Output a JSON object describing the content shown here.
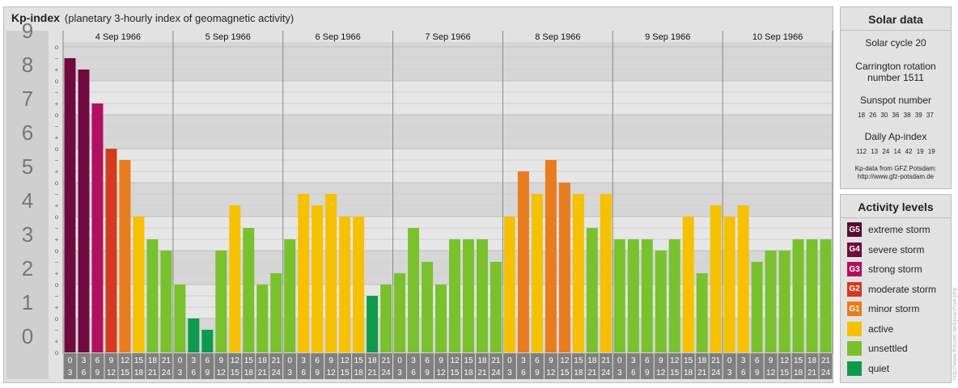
{
  "header": {
    "title": "Kp-index",
    "subtitle": "(planetary 3-hourly index of geomagnetic activity)"
  },
  "solar": {
    "heading": "Solar data",
    "cycle": "Solar cycle 20",
    "carrington_line1": "Carrington rotation",
    "carrington_line2": "number 1511",
    "sunspot_label": "Sunspot number",
    "sunspot_values": "18 26 30 36 38 39 37",
    "ap_label": "Daily Ap-index",
    "ap_values": "112 13 24 14 42 19 19",
    "source_line1": "Kp-data from GFZ Potsdam:",
    "source_line2": "http://www.gfz-potsdam.de"
  },
  "activity": {
    "heading": "Activity levels",
    "levels": [
      {
        "badge": "G5",
        "label": "extreme storm",
        "color": "#5a0a32"
      },
      {
        "badge": "G4",
        "label": "severe storm",
        "color": "#6e0a3e"
      },
      {
        "badge": "G3",
        "label": "strong storm",
        "color": "#b0105e"
      },
      {
        "badge": "G2",
        "label": "moderate storm",
        "color": "#d43a1e"
      },
      {
        "badge": "G1",
        "label": "minor storm",
        "color": "#e87c1e"
      },
      {
        "badge": "",
        "label": "active",
        "color": "#f5c100"
      },
      {
        "badge": "",
        "label": "unsettled",
        "color": "#7ac12e"
      },
      {
        "badge": "",
        "label": "quiet",
        "color": "#0e9a4c"
      }
    ]
  },
  "credit": "http://www.theuser.de/kp/archive.php",
  "chart_data": {
    "type": "bar",
    "ylim": [
      0,
      9
    ],
    "y_ticks": [
      "0",
      "1",
      "2",
      "3",
      "4",
      "5",
      "6",
      "7",
      "8",
      "9"
    ],
    "minor_marks": [
      "o",
      "−",
      "+"
    ],
    "days": [
      "4 Sep 1966",
      "5 Sep 1966",
      "6 Sep 1966",
      "7 Sep 1966",
      "8 Sep 1966",
      "9 Sep 1966",
      "10 Sep 1966"
    ],
    "interval_starts": [
      "0",
      "3",
      "6",
      "9",
      "12",
      "15",
      "18",
      "21"
    ],
    "interval_ends": [
      "3",
      "6",
      "9",
      "12",
      "15",
      "18",
      "21",
      "24"
    ],
    "values": [
      8.667,
      8.333,
      7.333,
      6.0,
      5.667,
      4.0,
      3.333,
      3.0,
      2.0,
      1.0,
      0.667,
      3.0,
      4.333,
      3.667,
      2.0,
      2.333,
      3.333,
      4.667,
      4.333,
      4.667,
      4.0,
      4.0,
      1.667,
      2.0,
      2.333,
      3.667,
      2.667,
      2.0,
      3.333,
      3.333,
      3.333,
      2.667,
      4.0,
      5.333,
      4.667,
      5.667,
      5.0,
      4.667,
      3.667,
      4.667,
      3.333,
      3.333,
      3.333,
      3.0,
      3.333,
      4.0,
      2.333,
      4.333,
      4.0,
      4.333,
      2.667,
      3.0,
      3.0,
      3.333,
      3.333,
      3.333
    ]
  }
}
